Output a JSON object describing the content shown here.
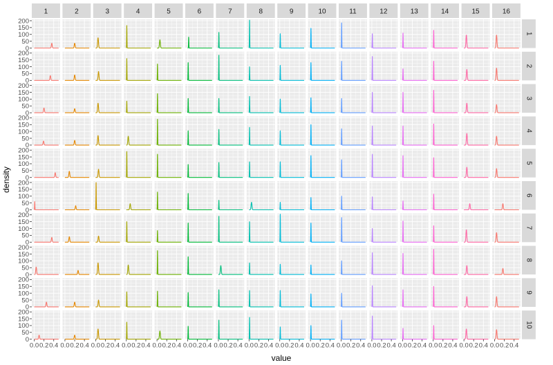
{
  "chart_data": {
    "type": "area",
    "facet_type": "grid",
    "xlabel": "value",
    "ylabel": "density",
    "col_labels": [
      "1",
      "2",
      "3",
      "4",
      "5",
      "6",
      "7",
      "8",
      "9",
      "10",
      "11",
      "12",
      "13",
      "14",
      "15",
      "16"
    ],
    "row_labels": [
      "1",
      "2",
      "3",
      "4",
      "5",
      "6",
      "7",
      "8",
      "9",
      "10"
    ],
    "xlim": [
      -0.05,
      0.53
    ],
    "ylim": [
      0,
      210
    ],
    "x_ticks": [
      0.0,
      0.2,
      0.4
    ],
    "x_tick_labels": [
      "0.0",
      "0.2",
      "0.4"
    ],
    "y_ticks": [
      0,
      50,
      100,
      150,
      200
    ],
    "y_tick_labels": [
      "0",
      "50",
      "100",
      "150",
      "200"
    ],
    "series_colors": [
      "#F8766D",
      "#E58700",
      "#C99800",
      "#A3A500",
      "#6BB100",
      "#00BA38",
      "#00BF7D",
      "#00C0AF",
      "#00BCD8",
      "#00B0F6",
      "#619CFF",
      "#B983FF",
      "#E76BF3",
      "#FD61D1",
      "#FF67A4",
      "#F8766D"
    ],
    "panel_background": "#EBEBEB",
    "strip_background": "#D9D9D9",
    "grid_color": "#FFFFFF",
    "peaks": [
      [
        [
          0.36,
          35
        ],
        [
          0.2,
          35
        ],
        [
          0.05,
          75
        ],
        [
          0.01,
          165
        ],
        [
          0.06,
          60
        ],
        [
          0.02,
          80
        ],
        [
          0.01,
          115
        ],
        [
          0.01,
          205
        ],
        [
          0.01,
          105
        ],
        [
          0.01,
          145
        ],
        [
          0.01,
          185
        ],
        [
          0.01,
          105
        ],
        [
          0.01,
          110
        ],
        [
          0.01,
          130
        ],
        [
          0.05,
          95
        ],
        [
          0.04,
          95
        ]
      ],
      [
        [
          0.33,
          35
        ],
        [
          0.2,
          40
        ],
        [
          0.06,
          65
        ],
        [
          0.01,
          160
        ],
        [
          0.01,
          120
        ],
        [
          0.01,
          130
        ],
        [
          0.01,
          185
        ],
        [
          0.01,
          100
        ],
        [
          0.01,
          110
        ],
        [
          0.01,
          130
        ],
        [
          0.01,
          140
        ],
        [
          0.01,
          175
        ],
        [
          0.01,
          85
        ],
        [
          0.01,
          140
        ],
        [
          0.06,
          80
        ],
        [
          0.04,
          90
        ]
      ],
      [
        [
          0.2,
          35
        ],
        [
          0.2,
          30
        ],
        [
          0.05,
          70
        ],
        [
          0.01,
          85
        ],
        [
          0.01,
          140
        ],
        [
          0.01,
          105
        ],
        [
          0.01,
          105
        ],
        [
          0.01,
          120
        ],
        [
          0.01,
          100
        ],
        [
          0.01,
          110
        ],
        [
          0.01,
          105
        ],
        [
          0.01,
          150
        ],
        [
          0.01,
          150
        ],
        [
          0.01,
          165
        ],
        [
          0.06,
          70
        ],
        [
          0.04,
          60
        ]
      ],
      [
        [
          0.19,
          30
        ],
        [
          0.2,
          35
        ],
        [
          0.05,
          70
        ],
        [
          0.04,
          65
        ],
        [
          0.01,
          190
        ],
        [
          0.01,
          105
        ],
        [
          0.01,
          115
        ],
        [
          0.01,
          130
        ],
        [
          0.01,
          105
        ],
        [
          0.01,
          150
        ],
        [
          0.01,
          120
        ],
        [
          0.01,
          140
        ],
        [
          0.01,
          140
        ],
        [
          0.01,
          155
        ],
        [
          0.06,
          85
        ],
        [
          0.04,
          65
        ]
      ],
      [
        [
          0.43,
          35
        ],
        [
          0.09,
          45
        ],
        [
          0.06,
          60
        ],
        [
          0.01,
          190
        ],
        [
          0.01,
          170
        ],
        [
          0.01,
          95
        ],
        [
          0.01,
          110
        ],
        [
          0.01,
          115
        ],
        [
          0.01,
          115
        ],
        [
          0.01,
          160
        ],
        [
          0.01,
          130
        ],
        [
          0.01,
          170
        ],
        [
          0.01,
          160
        ],
        [
          0.01,
          145
        ],
        [
          0.06,
          75
        ],
        [
          0.04,
          65
        ]
      ],
      [
        [
          0.01,
          60
        ],
        [
          0.22,
          30
        ],
        [
          0.01,
          200
        ],
        [
          0.08,
          45
        ],
        [
          0.01,
          130
        ],
        [
          0.01,
          120
        ],
        [
          0.01,
          70
        ],
        [
          0.05,
          55
        ],
        [
          0.01,
          55
        ],
        [
          0.01,
          90
        ],
        [
          0.01,
          100
        ],
        [
          0.01,
          95
        ],
        [
          0.01,
          65
        ],
        [
          0.01,
          115
        ],
        [
          0.12,
          45
        ],
        [
          0.17,
          45
        ]
      ],
      [
        [
          0.36,
          35
        ],
        [
          0.09,
          40
        ],
        [
          0.06,
          45
        ],
        [
          0.01,
          150
        ],
        [
          0.01,
          85
        ],
        [
          0.01,
          140
        ],
        [
          0.01,
          190
        ],
        [
          0.01,
          150
        ],
        [
          0.01,
          205
        ],
        [
          0.01,
          140
        ],
        [
          0.01,
          180
        ],
        [
          0.01,
          100
        ],
        [
          0.01,
          155
        ],
        [
          0.01,
          120
        ],
        [
          0.05,
          90
        ],
        [
          0.04,
          70
        ]
      ],
      [
        [
          0.04,
          55
        ],
        [
          0.27,
          30
        ],
        [
          0.05,
          85
        ],
        [
          0.04,
          70
        ],
        [
          0.01,
          175
        ],
        [
          0.01,
          130
        ],
        [
          0.05,
          65
        ],
        [
          0.01,
          85
        ],
        [
          0.01,
          75
        ],
        [
          0.01,
          70
        ],
        [
          0.01,
          100
        ],
        [
          0.01,
          160
        ],
        [
          0.01,
          155
        ],
        [
          0.01,
          185
        ],
        [
          0.06,
          65
        ],
        [
          0.17,
          45
        ]
      ],
      [
        [
          0.25,
          35
        ],
        [
          0.2,
          35
        ],
        [
          0.06,
          50
        ],
        [
          0.01,
          110
        ],
        [
          0.01,
          115
        ],
        [
          0.01,
          105
        ],
        [
          0.01,
          125
        ],
        [
          0.01,
          120
        ],
        [
          0.01,
          120
        ],
        [
          0.01,
          95
        ],
        [
          0.01,
          100
        ],
        [
          0.01,
          155
        ],
        [
          0.01,
          125
        ],
        [
          0.01,
          150
        ],
        [
          0.06,
          75
        ],
        [
          0.04,
          75
        ]
      ],
      [
        [
          0.1,
          30
        ],
        [
          0.2,
          30
        ],
        [
          0.05,
          75
        ],
        [
          0.01,
          125
        ],
        [
          0.06,
          60
        ],
        [
          0.01,
          95
        ],
        [
          0.01,
          140
        ],
        [
          0.01,
          160
        ],
        [
          0.01,
          90
        ],
        [
          0.01,
          100
        ],
        [
          0.01,
          140
        ],
        [
          0.01,
          170
        ],
        [
          0.01,
          80
        ],
        [
          0.01,
          100
        ],
        [
          0.05,
          75
        ],
        [
          0.04,
          70
        ]
      ]
    ]
  }
}
